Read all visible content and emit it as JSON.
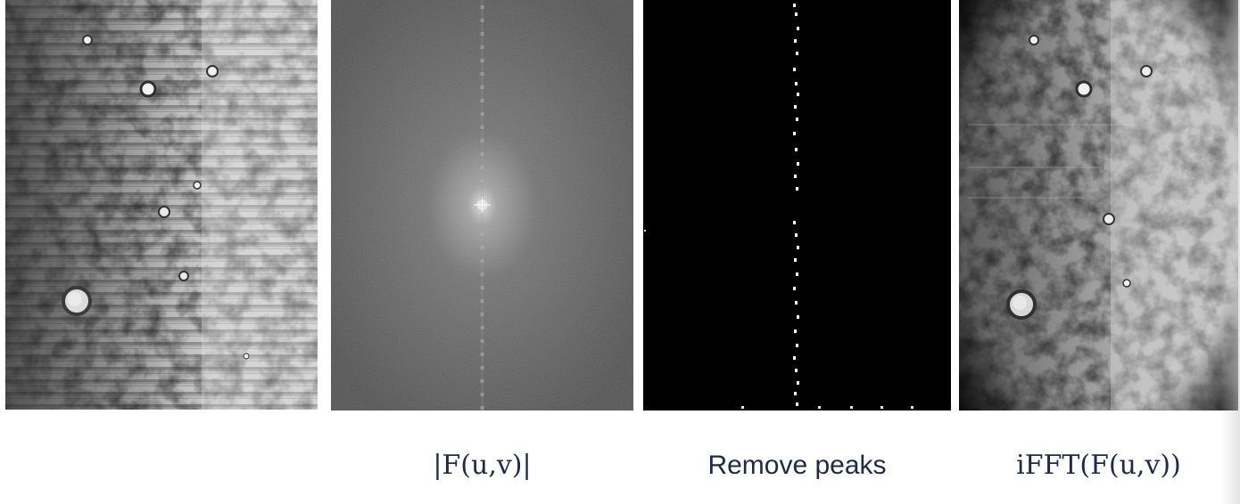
{
  "panels": [
    {
      "id": "original",
      "caption": ""
    },
    {
      "id": "spectrum",
      "caption": "|F(u,v)|"
    },
    {
      "id": "mask",
      "caption": "Remove peaks"
    },
    {
      "id": "result",
      "caption": "iFFT(F(u,v))"
    }
  ]
}
